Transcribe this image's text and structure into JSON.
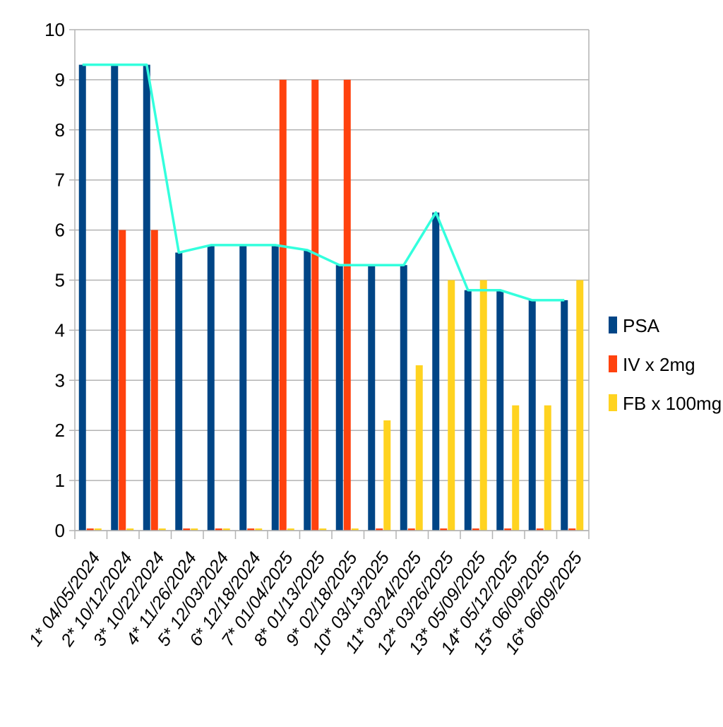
{
  "chart_data": {
    "type": "bar",
    "title": "",
    "xlabel": "",
    "ylabel": "",
    "ylim": [
      0,
      10
    ],
    "yticks": [
      "0",
      "1",
      "2",
      "3",
      "4",
      "5",
      "6",
      "7",
      "8",
      "9",
      "10"
    ],
    "grid": true,
    "legend_position": "right",
    "categories": [
      "1* 04/05/2024",
      "2* 10/12/2024",
      "3* 10/22/2024",
      "4* 11/26/2024",
      "5* 12/03/2024",
      "6* 12/18/2024",
      "7* 01/04/2025",
      "8* 01/13/2025",
      "9* 02/18/2025",
      "10* 03/13/2025",
      "11* 03/24/2025",
      "12* 03/26/2025",
      "13* 05/09/2025",
      "14* 05/12/2025",
      "15* 06/09/2025",
      "16* 06/09/2025"
    ],
    "series": [
      {
        "name": "PSA",
        "color": "#004586",
        "values": [
          9.3,
          9.3,
          9.3,
          5.55,
          5.7,
          5.7,
          5.7,
          5.6,
          5.3,
          5.3,
          5.3,
          6.35,
          4.8,
          4.8,
          4.6,
          4.6
        ]
      },
      {
        "name": "IV x 2mg",
        "color": "#ff420e",
        "values": [
          0,
          6,
          6,
          0,
          0,
          0,
          9,
          9,
          9,
          0,
          0,
          0,
          0,
          0,
          0,
          0
        ]
      },
      {
        "name": "FB x 100mg",
        "color": "#ffd320",
        "values": [
          0,
          0,
          0,
          0,
          0,
          0,
          0,
          0,
          0,
          2.2,
          3.3,
          5,
          5,
          2.5,
          2.5,
          5
        ]
      }
    ],
    "trend_line": {
      "color": "#33ffdd",
      "values": [
        9.3,
        9.3,
        9.3,
        5.55,
        5.7,
        5.7,
        5.7,
        5.6,
        5.3,
        5.3,
        5.3,
        6.35,
        4.8,
        4.8,
        4.6,
        4.6
      ]
    }
  }
}
